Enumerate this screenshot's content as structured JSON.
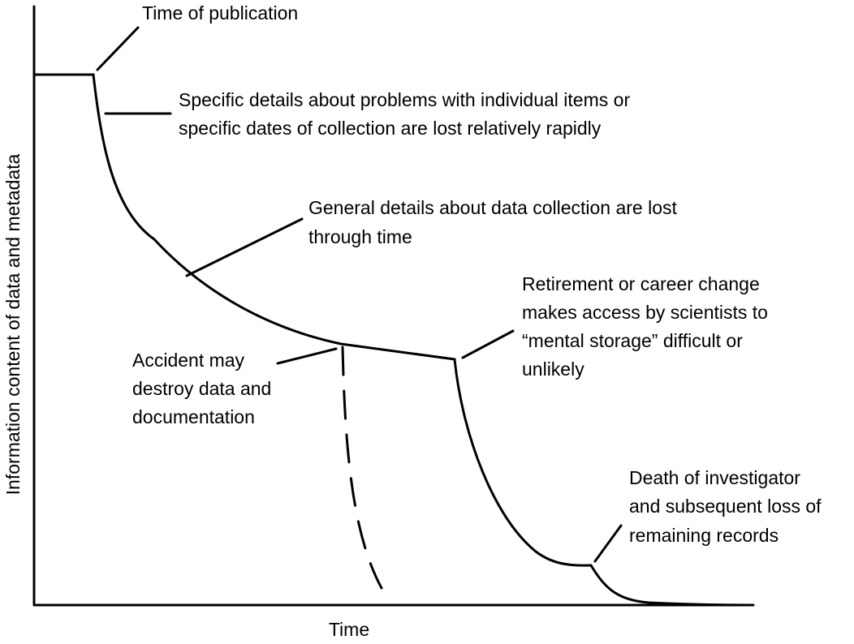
{
  "axes": {
    "x_label": "Time",
    "y_label": "Information content of data and metadata"
  },
  "annotations": {
    "publication": [
      "Time of publication"
    ],
    "specific_details": [
      "Specific details about problems with individual items or",
      "specific dates of collection are lost relatively rapidly"
    ],
    "general_details": [
      "General details about data collection are lost",
      "through time"
    ],
    "retirement": [
      "Retirement or career change",
      "makes access by scientists to",
      "“mental storage” difficult or",
      "unlikely"
    ],
    "accident": [
      "Accident may",
      "destroy data and",
      "documentation"
    ],
    "death": [
      "Death of investigator",
      "and subsequent loss of",
      "remaining records"
    ]
  }
}
